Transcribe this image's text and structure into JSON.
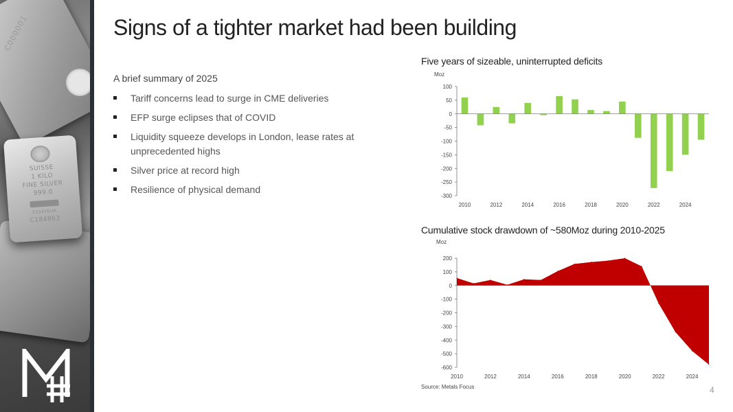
{
  "title": "Signs of a tighter market had been building",
  "summary": {
    "heading": "A brief summary of 2025",
    "bullets": [
      "Tariff concerns lead to surge in CME deliveries",
      "EFP surge eclipses that of COVID",
      "Liquidity squeeze develops in London, lease rates at unprecedented highs",
      "Silver price at record high",
      "Resilience of physical demand"
    ]
  },
  "photo": {
    "serial_top": "C000001",
    "bar_lines": [
      "SUISSE",
      "1 KILO",
      "FINE SILVER",
      "999.0",
      "",
      "ESSAYEUR",
      "C184863"
    ]
  },
  "colors": {
    "deficit_bar": "#92d050",
    "drawdown_area": "#c00000",
    "title": "#222222",
    "axis": "#444444"
  },
  "chart_data": [
    {
      "type": "bar",
      "title": "Five years of sizeable, uninterrupted deficits",
      "ylabel": "Moz",
      "ylim": [
        -300,
        100
      ],
      "yticks": [
        100,
        50,
        0,
        -50,
        -100,
        -150,
        -200,
        -250,
        -300
      ],
      "x": [
        2010,
        2011,
        2012,
        2013,
        2014,
        2015,
        2016,
        2017,
        2018,
        2019,
        2020,
        2021,
        2022,
        2023,
        2024,
        2025
      ],
      "values": [
        60,
        -42,
        25,
        -35,
        40,
        -5,
        65,
        53,
        14,
        10,
        45,
        -88,
        -272,
        -210,
        -150,
        -95
      ],
      "xtick_labels": [
        "2010",
        "2012",
        "2014",
        "2016",
        "2018",
        "2020",
        "2022",
        "2024"
      ]
    },
    {
      "type": "area",
      "title": "Cumulative stock drawdown of ~580Moz during 2010-2025",
      "ylabel": "Moz",
      "ylim": [
        -600,
        200
      ],
      "yticks": [
        200,
        100,
        0,
        -100,
        -200,
        -300,
        -400,
        -500,
        -600
      ],
      "x": [
        2010,
        2011,
        2012,
        2013,
        2014,
        2015,
        2016,
        2017,
        2018,
        2019,
        2020,
        2021,
        2022,
        2023,
        2024,
        2025
      ],
      "values": [
        55,
        15,
        40,
        5,
        45,
        40,
        105,
        158,
        172,
        182,
        200,
        140,
        -130,
        -340,
        -480,
        -580
      ],
      "xtick_labels": [
        "2010",
        "2012",
        "2014",
        "2016",
        "2018",
        "2020",
        "2022",
        "2024"
      ]
    }
  ],
  "source": "Source: Metals Focus",
  "page_number": "4"
}
